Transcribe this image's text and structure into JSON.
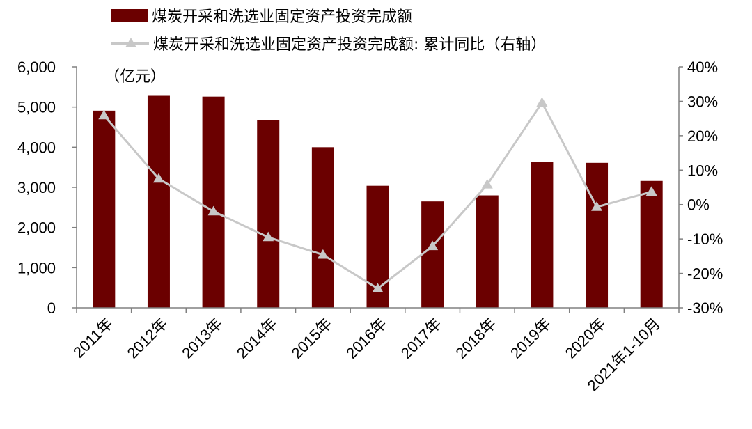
{
  "legend": {
    "bar_label": "煤炭开采和洗选业固定资产投资完成额",
    "line_label": "煤炭开采和洗选业固定资产投资完成额: 累计同比（右轴）"
  },
  "unit_label": "（亿元）",
  "colors": {
    "bar": "#6b0000",
    "line": "#c8c8c8",
    "axis": "#808080"
  },
  "chart_data": {
    "type": "bar",
    "categories": [
      "2011年",
      "2012年",
      "2013年",
      "2014年",
      "2015年",
      "2016年",
      "2017年",
      "2018年",
      "2019年",
      "2020年",
      "2021年1-10月"
    ],
    "series": [
      {
        "name": "煤炭开采和洗选业固定资产投资完成额",
        "type": "bar",
        "axis": "left",
        "values": [
          4910,
          5280,
          5260,
          4680,
          4000,
          3040,
          2650,
          2800,
          3630,
          3610,
          3160
        ]
      },
      {
        "name": "煤炭开采和洗选业固定资产投资完成额: 累计同比（右轴）",
        "type": "line",
        "axis": "right",
        "values": [
          25.9,
          7.5,
          -2.0,
          -9.5,
          -14.6,
          -24.4,
          -12.1,
          5.8,
          29.6,
          -0.7,
          3.7
        ]
      }
    ],
    "y_left": {
      "ylim": [
        0,
        6000
      ],
      "ticks": [
        0,
        1000,
        2000,
        3000,
        4000,
        5000,
        6000
      ],
      "tick_labels": [
        "0",
        "1,000",
        "2,000",
        "3,000",
        "4,000",
        "5,000",
        "6,000"
      ]
    },
    "y_right": {
      "ylim": [
        -30,
        40
      ],
      "ticks": [
        -30,
        -20,
        -10,
        0,
        10,
        20,
        30,
        40
      ],
      "tick_labels": [
        "-30%",
        "-20%",
        "-10%",
        "0%",
        "10%",
        "20%",
        "30%",
        "40%"
      ]
    },
    "grid": false,
    "legend_position": "top-left"
  }
}
